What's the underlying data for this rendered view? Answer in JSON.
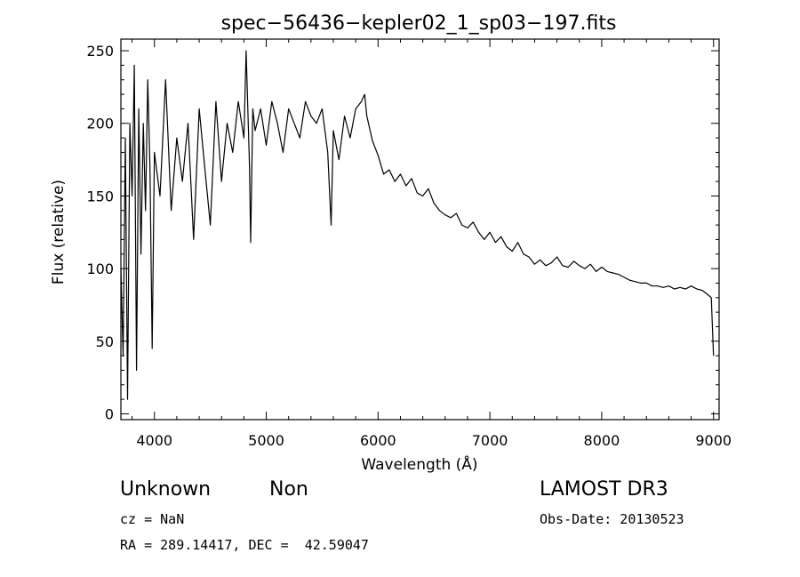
{
  "chart_data": {
    "type": "line",
    "title": "spec−56436−kepler02_1_sp03−197.fits",
    "xlabel": "Wavelength (Å)",
    "ylabel": "Flux (relative)",
    "xlim": [
      3700,
      9050
    ],
    "ylim": [
      -4,
      258
    ],
    "xticks": [
      4000,
      5000,
      6000,
      7000,
      8000,
      9000
    ],
    "xtick_labels": [
      "4000",
      "5000",
      "6000",
      "7000",
      "8000",
      "9000"
    ],
    "yticks": [
      0,
      50,
      100,
      150,
      200,
      250
    ],
    "ytick_labels": [
      "0",
      "50",
      "100",
      "150",
      "200",
      "250"
    ],
    "grid": false,
    "series": [
      {
        "name": "flux",
        "x": [
          3700,
          3720,
          3740,
          3760,
          3780,
          3800,
          3820,
          3840,
          3860,
          3880,
          3900,
          3920,
          3940,
          3960,
          3980,
          4000,
          4050,
          4100,
          4150,
          4200,
          4250,
          4300,
          4350,
          4400,
          4450,
          4500,
          4550,
          4600,
          4650,
          4700,
          4750,
          4800,
          4820,
          4850,
          4861,
          4880,
          4900,
          4950,
          5000,
          5050,
          5100,
          5150,
          5200,
          5250,
          5300,
          5350,
          5400,
          5450,
          5500,
          5550,
          5580,
          5600,
          5650,
          5700,
          5750,
          5800,
          5850,
          5880,
          5900,
          5950,
          6000,
          6050,
          6100,
          6150,
          6200,
          6250,
          6300,
          6350,
          6400,
          6450,
          6500,
          6550,
          6600,
          6650,
          6700,
          6750,
          6800,
          6850,
          6900,
          6950,
          7000,
          7050,
          7100,
          7150,
          7200,
          7250,
          7300,
          7350,
          7400,
          7450,
          7500,
          7550,
          7600,
          7650,
          7700,
          7750,
          7800,
          7850,
          7900,
          7950,
          8000,
          8050,
          8100,
          8150,
          8200,
          8250,
          8300,
          8350,
          8400,
          8450,
          8500,
          8550,
          8600,
          8650,
          8700,
          8750,
          8800,
          8850,
          8900,
          8950,
          8980,
          9000
        ],
        "y": [
          100,
          40,
          190,
          10,
          200,
          150,
          240,
          30,
          210,
          110,
          200,
          140,
          230,
          170,
          45,
          180,
          150,
          230,
          140,
          190,
          160,
          200,
          120,
          210,
          170,
          130,
          215,
          160,
          200,
          180,
          215,
          190,
          250,
          170,
          118,
          210,
          195,
          210,
          185,
          215,
          200,
          180,
          210,
          200,
          190,
          215,
          205,
          200,
          210,
          180,
          130,
          195,
          175,
          205,
          190,
          210,
          215,
          220,
          205,
          188,
          178,
          165,
          168,
          160,
          165,
          157,
          162,
          152,
          150,
          155,
          145,
          140,
          137,
          135,
          138,
          130,
          128,
          132,
          125,
          120,
          125,
          118,
          122,
          115,
          112,
          118,
          110,
          108,
          103,
          106,
          102,
          104,
          108,
          102,
          101,
          105,
          102,
          100,
          103,
          98,
          101,
          98,
          97,
          96,
          94,
          92,
          91,
          90,
          90,
          88,
          88,
          87,
          88,
          86,
          87,
          86,
          88,
          86,
          85,
          82,
          80,
          40
        ]
      }
    ]
  },
  "info": {
    "object_class": "Unknown",
    "object_subclass": "Non",
    "survey": "LAMOST DR3",
    "cz": "cz = NaN",
    "obs_date": "Obs-Date: 20130523",
    "coords": "RA = 289.14417, DEC =  42.59047"
  }
}
